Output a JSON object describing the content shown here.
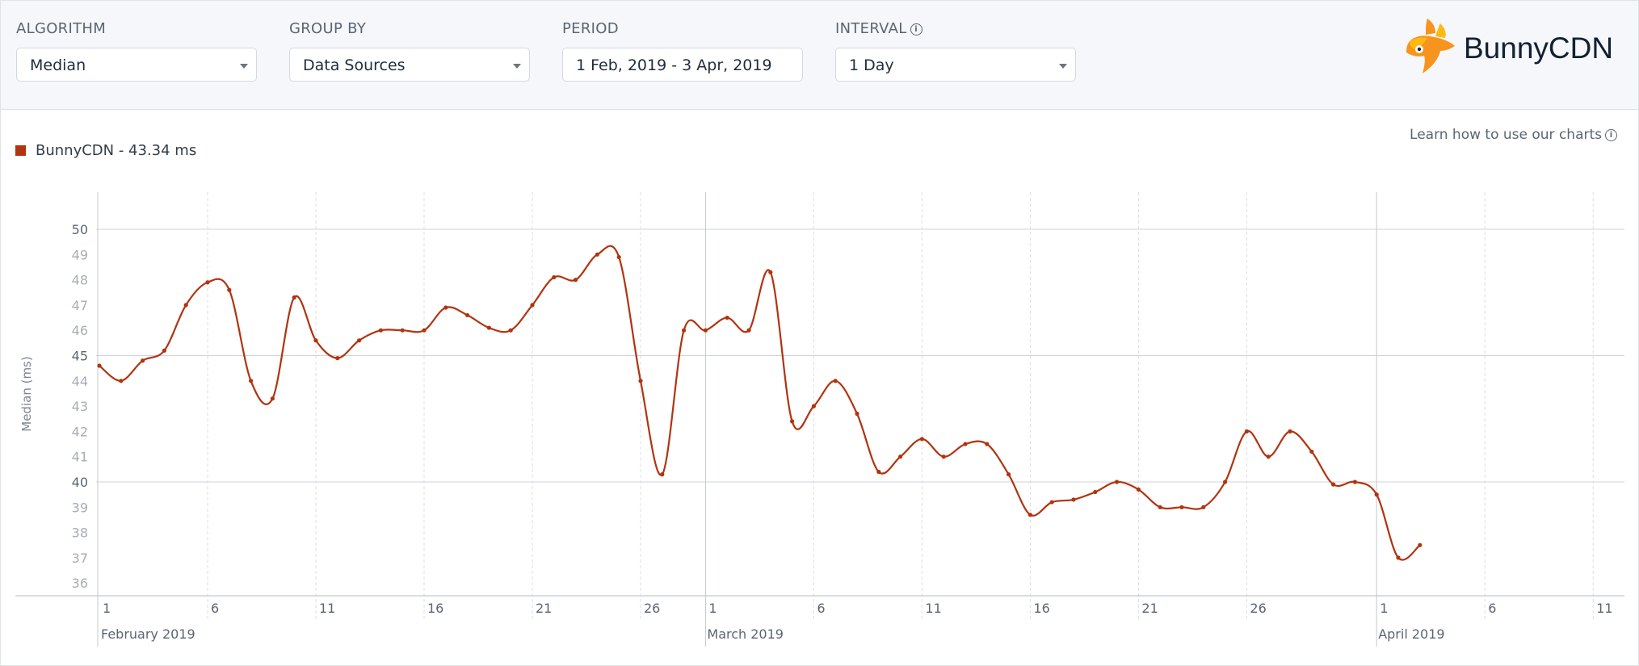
{
  "toolbar": {
    "algorithm": {
      "label": "ALGORITHM",
      "value": "Median"
    },
    "group_by": {
      "label": "GROUP BY",
      "value": "Data Sources"
    },
    "period": {
      "label": "PERIOD",
      "value": "1 Feb, 2019 - 3 Apr, 2019"
    },
    "interval": {
      "label": "INTERVAL",
      "value": "1 Day",
      "info_icon": "info-icon"
    }
  },
  "brand": {
    "name": "BunnyCDN",
    "logo_icon": "bunny-logo-icon",
    "accent": "#f7941d"
  },
  "legend": {
    "text": "BunnyCDN - 43.34 ms",
    "color": "#b13310"
  },
  "help": {
    "text": "Learn how to use our charts",
    "icon": "info-icon"
  },
  "chart_data": {
    "type": "line",
    "ylabel": "Median (ms)",
    "ylim": [
      35,
      51
    ],
    "y_ticks": [
      36,
      37,
      38,
      39,
      40,
      41,
      42,
      43,
      44,
      45,
      46,
      47,
      48,
      49,
      50
    ],
    "x_ticks": [
      {
        "date": "2019-02-01",
        "label": "1"
      },
      {
        "date": "2019-02-06",
        "label": "6"
      },
      {
        "date": "2019-02-11",
        "label": "11"
      },
      {
        "date": "2019-02-16",
        "label": "16"
      },
      {
        "date": "2019-02-21",
        "label": "21"
      },
      {
        "date": "2019-02-26",
        "label": "26"
      },
      {
        "date": "2019-03-01",
        "label": "1"
      },
      {
        "date": "2019-03-06",
        "label": "6"
      },
      {
        "date": "2019-03-11",
        "label": "11"
      },
      {
        "date": "2019-03-16",
        "label": "16"
      },
      {
        "date": "2019-03-21",
        "label": "21"
      },
      {
        "date": "2019-03-26",
        "label": "26"
      },
      {
        "date": "2019-04-01",
        "label": "1"
      },
      {
        "date": "2019-04-06",
        "label": "6"
      },
      {
        "date": "2019-04-11",
        "label": "11"
      }
    ],
    "month_labels": [
      {
        "date": "2019-02-01",
        "label": "February 2019"
      },
      {
        "date": "2019-03-01",
        "label": "March 2019"
      },
      {
        "date": "2019-04-01",
        "label": "April 2019"
      }
    ],
    "grid": true,
    "line_color": "#b13310",
    "series": [
      {
        "name": "BunnyCDN",
        "x": [
          "2019-02-01",
          "2019-02-02",
          "2019-02-03",
          "2019-02-04",
          "2019-02-05",
          "2019-02-06",
          "2019-02-07",
          "2019-02-08",
          "2019-02-09",
          "2019-02-10",
          "2019-02-11",
          "2019-02-12",
          "2019-02-13",
          "2019-02-14",
          "2019-02-15",
          "2019-02-16",
          "2019-02-17",
          "2019-02-18",
          "2019-02-19",
          "2019-02-20",
          "2019-02-21",
          "2019-02-22",
          "2019-02-23",
          "2019-02-24",
          "2019-02-25",
          "2019-02-26",
          "2019-02-27",
          "2019-02-28",
          "2019-03-01",
          "2019-03-02",
          "2019-03-03",
          "2019-03-04",
          "2019-03-05",
          "2019-03-06",
          "2019-03-07",
          "2019-03-08",
          "2019-03-09",
          "2019-03-10",
          "2019-03-11",
          "2019-03-12",
          "2019-03-13",
          "2019-03-14",
          "2019-03-15",
          "2019-03-16",
          "2019-03-17",
          "2019-03-18",
          "2019-03-19",
          "2019-03-20",
          "2019-03-21",
          "2019-03-22",
          "2019-03-23",
          "2019-03-24",
          "2019-03-25",
          "2019-03-26",
          "2019-03-27",
          "2019-03-28",
          "2019-03-29",
          "2019-03-30",
          "2019-03-31",
          "2019-04-01",
          "2019-04-02",
          "2019-04-03"
        ],
        "values": [
          44.6,
          44.0,
          44.8,
          45.2,
          47.0,
          47.9,
          47.6,
          44.0,
          43.3,
          47.3,
          45.6,
          44.9,
          45.6,
          46.0,
          46.0,
          46.0,
          46.9,
          46.6,
          46.1,
          46.0,
          47.0,
          48.1,
          48.0,
          49.0,
          48.9,
          44.0,
          40.3,
          46.0,
          46.0,
          46.5,
          46.0,
          48.3,
          42.4,
          43.0,
          44.0,
          42.7,
          40.4,
          41.0,
          41.7,
          41.0,
          41.5,
          41.5,
          40.3,
          38.7,
          39.2,
          39.3,
          39.6,
          40.0,
          39.7,
          39.0,
          39.0,
          39.0,
          40.0,
          42.0,
          41.0,
          42.0,
          41.2,
          39.9,
          40.0,
          39.5,
          37.0,
          37.5
        ]
      }
    ]
  }
}
